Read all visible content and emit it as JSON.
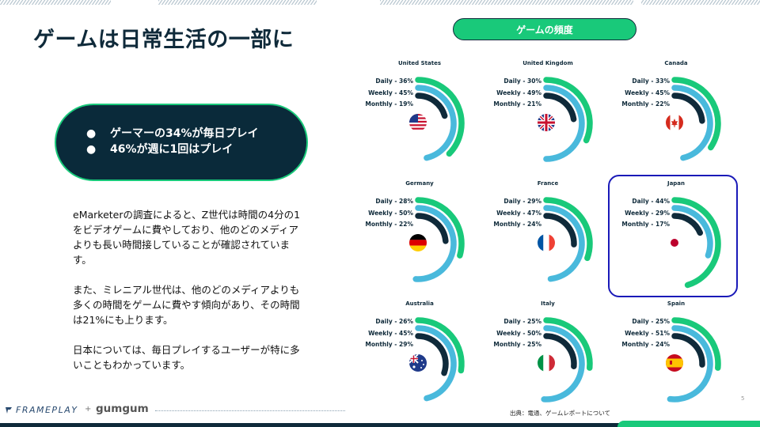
{
  "slide": {
    "title": "ゲームは日常生活の一部に",
    "frequency_button": "ゲームの頻度",
    "highlights": [
      "ゲーマーの34%が毎日プレイ",
      "46%が週に1回はプレイ"
    ],
    "bullet": "●",
    "paragraphs": [
      "eMarketerの調査によると、Z世代は時間の4分の1をビデオゲームに費やしており、他のどのメディアよりも長い時間接していることが確認されています。",
      "また、ミレニアル世代は、他のどのメディアよりも多くの時間をゲームに費やす傾向があり、その時間は21%にも上ります。",
      "日本については、毎日プレイするユーザーが特に多いこともわかっています。"
    ],
    "source": "出典：電通、ゲームレポートについて",
    "page_number": "5",
    "logos": {
      "frameplay": "FRAMEPLAY",
      "plus": "+",
      "gumgum": "gumgum"
    },
    "colors": {
      "navy": "#0f2a3a",
      "green": "#19c97a",
      "blue": "#49b9dc",
      "highlight_frame": "#1a1ab8"
    }
  },
  "chart_data": {
    "type": "radial-bar",
    "ring_order": [
      "Daily",
      "Weekly",
      "Monthly"
    ],
    "ring_colors": [
      "#19c97a",
      "#49b9dc",
      "#0f2a3a"
    ],
    "countries": [
      {
        "name": "United States",
        "flag": "us-flag",
        "daily": 36,
        "weekly": 45,
        "monthly": 19
      },
      {
        "name": "United Kingdom",
        "flag": "uk-flag",
        "daily": 30,
        "weekly": 49,
        "monthly": 21
      },
      {
        "name": "Canada",
        "flag": "canada-flag",
        "daily": 33,
        "weekly": 45,
        "monthly": 22
      },
      {
        "name": "Germany",
        "flag": "germany-flag",
        "daily": 28,
        "weekly": 50,
        "monthly": 22
      },
      {
        "name": "France",
        "flag": "france-flag",
        "daily": 29,
        "weekly": 47,
        "monthly": 24
      },
      {
        "name": "Japan",
        "flag": "japan-flag",
        "daily": 44,
        "weekly": 29,
        "monthly": 17,
        "highlighted": true
      },
      {
        "name": "Australia",
        "flag": "australia-flag",
        "daily": 26,
        "weekly": 45,
        "monthly": 29
      },
      {
        "name": "Italy",
        "flag": "italy-flag",
        "daily": 25,
        "weekly": 50,
        "monthly": 25
      },
      {
        "name": "Spain",
        "flag": "spain-flag",
        "daily": 25,
        "weekly": 51,
        "monthly": 24
      }
    ]
  }
}
